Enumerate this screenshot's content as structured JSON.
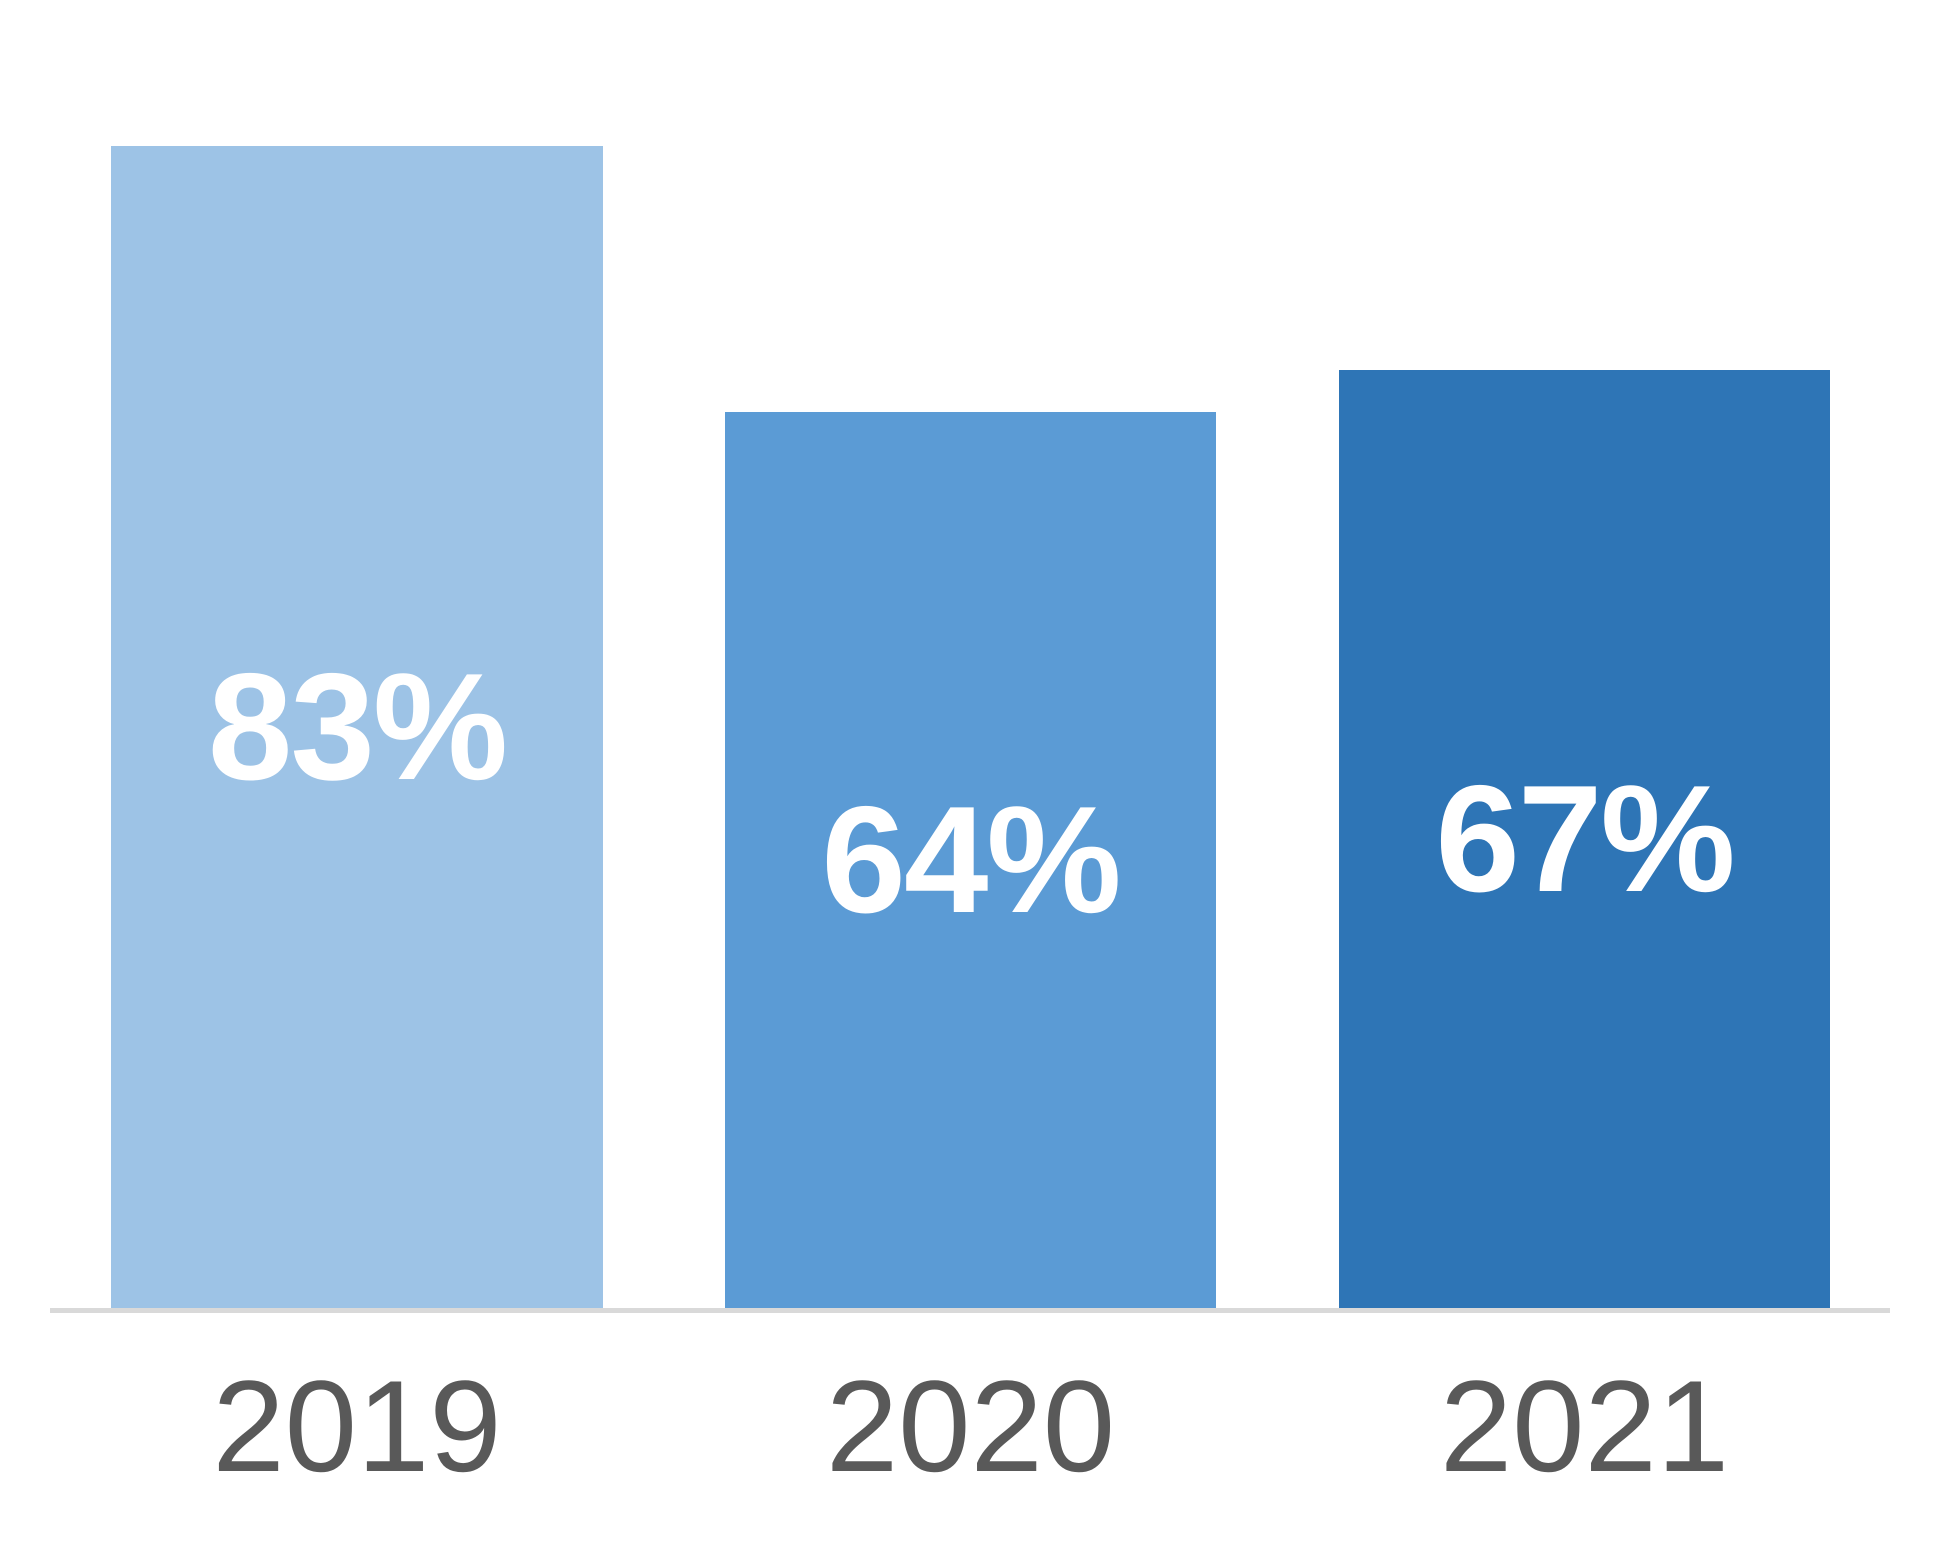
{
  "chart_data": {
    "type": "bar",
    "categories": [
      "2019",
      "2020",
      "2021"
    ],
    "values": [
      83,
      64,
      67
    ],
    "value_labels": [
      "83%",
      "64%",
      "67%"
    ],
    "unit": "%",
    "bar_colors": [
      "#9DC3E6",
      "#5B9BD5",
      "#2E75B6"
    ],
    "value_label_color": "#FFFFFF",
    "category_label_color": "#595959",
    "axis_line_color": "#D9D9D9",
    "background_color": "#FFFFFF",
    "grid": false,
    "legend": false,
    "value_labels_position": "center-of-bar"
  }
}
